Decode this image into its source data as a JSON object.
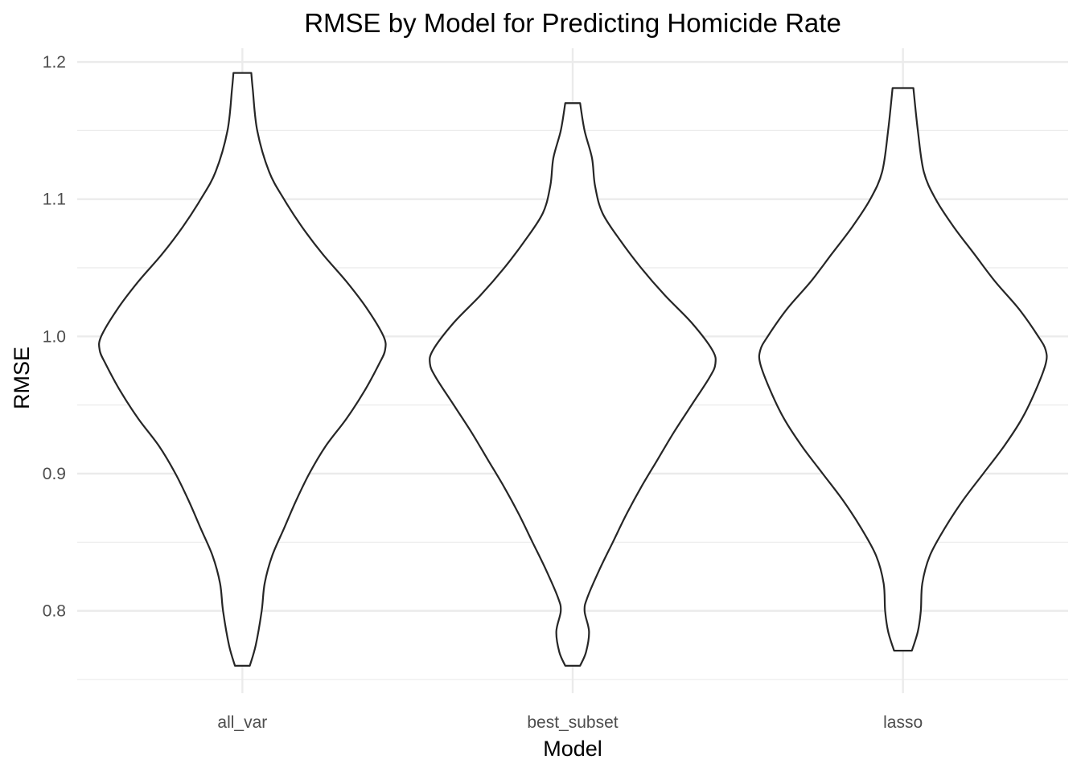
{
  "chart_data": {
    "type": "violin",
    "title": "RMSE by Model for Predicting Homicide Rate",
    "xlabel": "Model",
    "ylabel": "RMSE",
    "categories": [
      "all_var",
      "best_subset",
      "lasso"
    ],
    "ylim": [
      0.74,
      1.21
    ],
    "y_ticks": [
      0.8,
      0.9,
      1.0,
      1.1,
      1.2
    ],
    "y_tick_labels": [
      "0.8",
      "0.9",
      "1.0",
      "1.1",
      "1.2"
    ],
    "grid": true,
    "legend": "none",
    "line_color": "#262626",
    "fill_color": "#ffffff",
    "violins": [
      {
        "category": "all_var",
        "y_min": 0.76,
        "y_max": 1.192,
        "density_profile": [
          [
            0.76,
            0.05
          ],
          [
            0.775,
            0.09
          ],
          [
            0.8,
            0.13
          ],
          [
            0.82,
            0.15
          ],
          [
            0.84,
            0.2
          ],
          [
            0.86,
            0.28
          ],
          [
            0.88,
            0.36
          ],
          [
            0.9,
            0.45
          ],
          [
            0.92,
            0.56
          ],
          [
            0.94,
            0.7
          ],
          [
            0.96,
            0.82
          ],
          [
            0.98,
            0.92
          ],
          [
            0.99,
            0.96
          ],
          [
            1.0,
            0.95
          ],
          [
            1.02,
            0.84
          ],
          [
            1.04,
            0.7
          ],
          [
            1.06,
            0.54
          ],
          [
            1.08,
            0.4
          ],
          [
            1.1,
            0.28
          ],
          [
            1.12,
            0.18
          ],
          [
            1.15,
            0.1
          ],
          [
            1.18,
            0.07
          ],
          [
            1.192,
            0.06
          ]
        ]
      },
      {
        "category": "best_subset",
        "y_min": 0.76,
        "y_max": 1.17,
        "density_profile": [
          [
            0.76,
            0.05
          ],
          [
            0.77,
            0.09
          ],
          [
            0.785,
            0.11
          ],
          [
            0.8,
            0.08
          ],
          [
            0.81,
            0.1
          ],
          [
            0.83,
            0.18
          ],
          [
            0.85,
            0.27
          ],
          [
            0.87,
            0.36
          ],
          [
            0.89,
            0.46
          ],
          [
            0.91,
            0.57
          ],
          [
            0.93,
            0.68
          ],
          [
            0.95,
            0.8
          ],
          [
            0.97,
            0.92
          ],
          [
            0.98,
            0.96
          ],
          [
            0.99,
            0.94
          ],
          [
            1.01,
            0.8
          ],
          [
            1.03,
            0.62
          ],
          [
            1.05,
            0.46
          ],
          [
            1.07,
            0.32
          ],
          [
            1.09,
            0.2
          ],
          [
            1.11,
            0.15
          ],
          [
            1.13,
            0.13
          ],
          [
            1.15,
            0.08
          ],
          [
            1.17,
            0.05
          ]
        ]
      },
      {
        "category": "lasso",
        "y_min": 0.771,
        "y_max": 1.181,
        "density_profile": [
          [
            0.771,
            0.06
          ],
          [
            0.785,
            0.1
          ],
          [
            0.8,
            0.12
          ],
          [
            0.82,
            0.13
          ],
          [
            0.84,
            0.18
          ],
          [
            0.86,
            0.28
          ],
          [
            0.88,
            0.4
          ],
          [
            0.9,
            0.54
          ],
          [
            0.92,
            0.68
          ],
          [
            0.94,
            0.8
          ],
          [
            0.96,
            0.89
          ],
          [
            0.98,
            0.96
          ],
          [
            0.99,
            0.96
          ],
          [
            1.0,
            0.91
          ],
          [
            1.02,
            0.78
          ],
          [
            1.04,
            0.62
          ],
          [
            1.06,
            0.48
          ],
          [
            1.08,
            0.34
          ],
          [
            1.1,
            0.22
          ],
          [
            1.12,
            0.14
          ],
          [
            1.15,
            0.1
          ],
          [
            1.181,
            0.07
          ]
        ]
      }
    ]
  }
}
